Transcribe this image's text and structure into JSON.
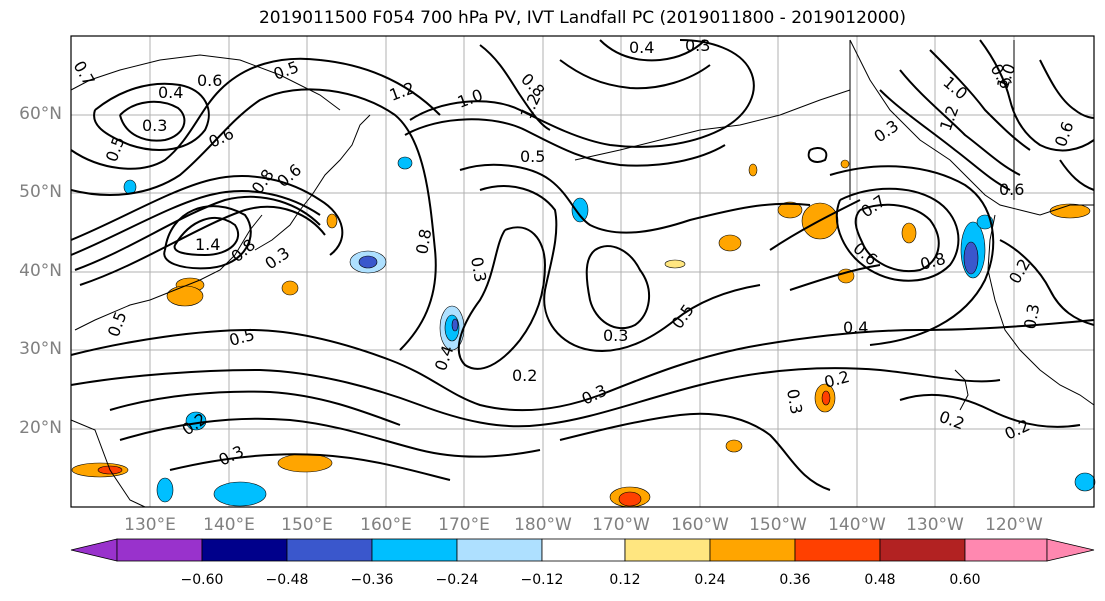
{
  "title": "2019011500 F054 700 hPa PV, IVT Landfall PC (2019011800 - 2019012000)",
  "latitude_labels": [
    "60°N",
    "50°N",
    "40°N",
    "30°N",
    "20°N"
  ],
  "longitude_labels": [
    "130°E",
    "140°E",
    "150°E",
    "160°E",
    "170°E",
    "180°W",
    "170°W",
    "160°W",
    "150°W",
    "140°W",
    "130°W",
    "120°W"
  ],
  "contour_labels": [
    "0.7",
    "0.6",
    "0.5",
    "0.4",
    "0.3",
    "0.6",
    "0.5",
    "1.2",
    "1.0",
    "1.2",
    "0.8",
    "0.5",
    "0.4",
    "0.3",
    "1.0",
    "1.2",
    "0.6",
    "0.3",
    "0.8",
    "0.6",
    "1.4",
    "0.8",
    "0.3",
    "0.5",
    "0.8",
    "0.3",
    "0.3",
    "0.5",
    "0.4",
    "0.2",
    "0.3",
    "0.4",
    "0.2",
    "0.3",
    "0.2",
    "0.3",
    "0.2",
    "0.7",
    "0.6",
    "0.8",
    "0.6",
    "0.3",
    "0.2",
    "0.2",
    "0.5",
    "0.6",
    "1.0"
  ],
  "colorbar": {
    "colors": [
      "#9932cc",
      "#00008b",
      "#3a57cc",
      "#00bfff",
      "#aee0ff",
      "#ffffff",
      "#ffe680",
      "#ffa500",
      "#ff4000",
      "#b22222",
      "#ff88b0"
    ],
    "tick_labels": [
      "−0.60",
      "−0.48",
      "−0.36",
      "−0.24",
      "−0.12",
      "0.12",
      "0.24",
      "0.36",
      "0.48",
      "0.60"
    ]
  }
}
